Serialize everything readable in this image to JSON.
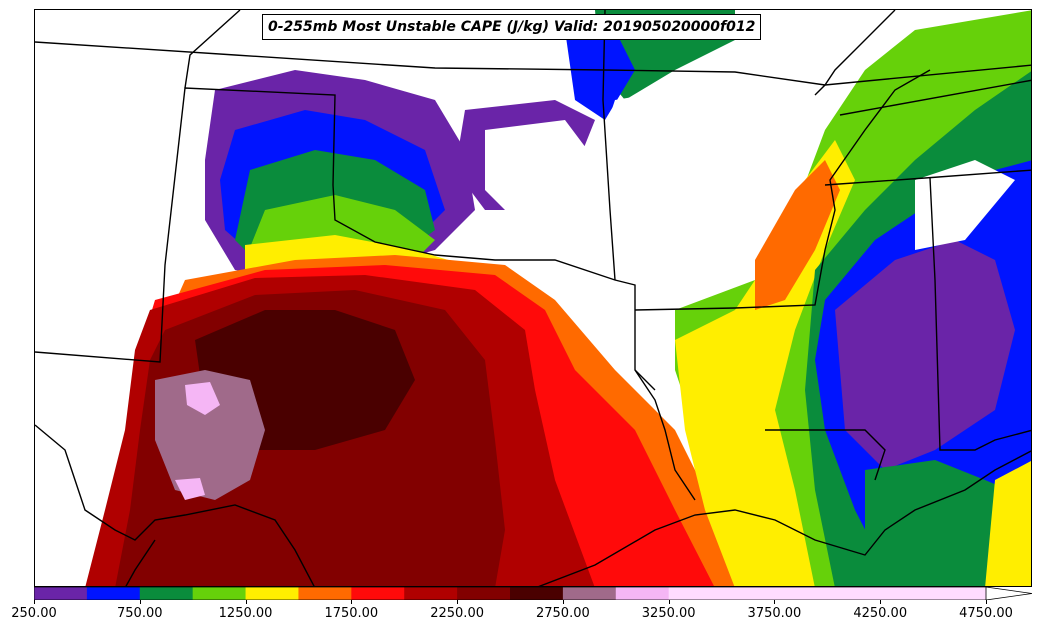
{
  "title": "0-255mb Most Unstable CAPE (J/kg) Valid: 201905020000f012",
  "colorbar": {
    "colors": [
      "#6a24a8",
      "#0014ff",
      "#0a8c3c",
      "#66d10a",
      "#ffee00",
      "#ff6a00",
      "#ff0a0a",
      "#b00000",
      "#820000",
      "#4a0000",
      "#a06a8a",
      "#f5b6f5",
      "#ffdcff",
      "#ffffff"
    ],
    "levels": [
      250,
      500,
      750,
      1000,
      1250,
      1500,
      1750,
      2000,
      2250,
      2500,
      2750,
      3000,
      3250,
      3500,
      3750,
      4000,
      4250,
      4500,
      4750
    ],
    "tick_labels": [
      "250.00",
      "750.00",
      "1250.00",
      "1750.00",
      "2250.00",
      "2750.00",
      "3250.00",
      "3750.00",
      "4250.00",
      "4750.00"
    ],
    "extend": "max"
  },
  "map": {
    "field": "0-255mb Most Unstable CAPE",
    "units": "J/kg"
  }
}
